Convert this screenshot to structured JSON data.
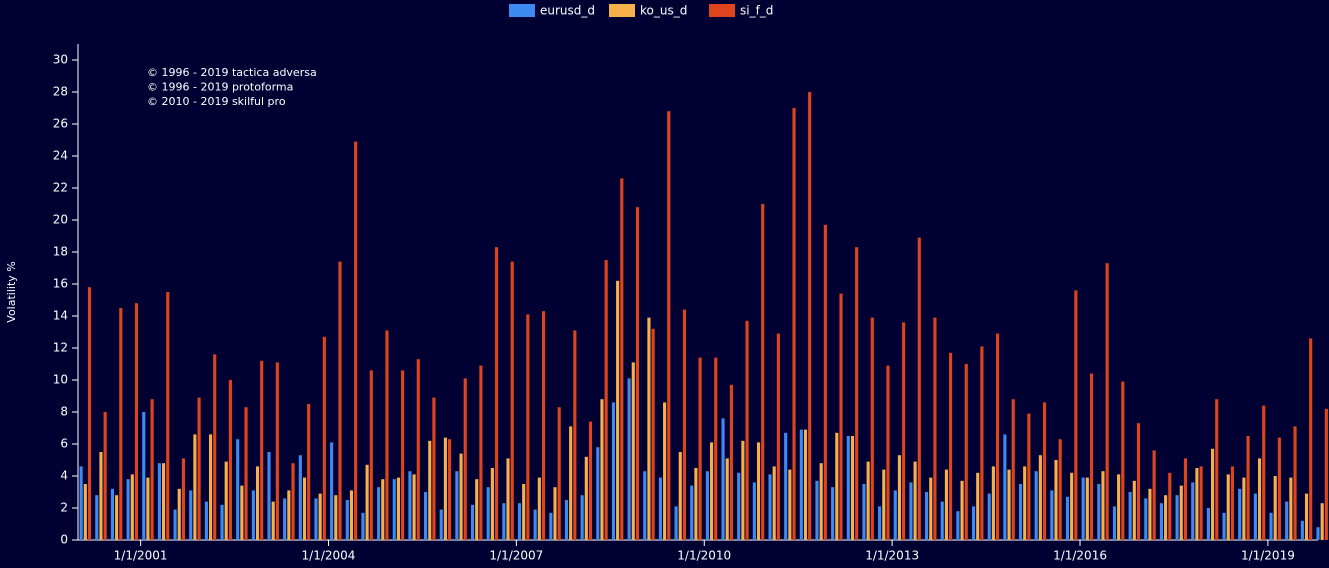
{
  "chart_data": {
    "type": "bar",
    "y_label": "Volatility %",
    "annotations": [
      "© 1996 - 2019 tactica adversa",
      "© 1996 - 2019 protoforma",
      "© 2010 - 2019 skilful pro"
    ],
    "legend": "top",
    "xlim": [
      2000,
      2019.8
    ],
    "xticks": [
      {
        "value": 2001,
        "label": "1/1/2001"
      },
      {
        "value": 2004,
        "label": "1/1/2004"
      },
      {
        "value": 2007,
        "label": "1/1/2007"
      },
      {
        "value": 2010,
        "label": "1/1/2010"
      },
      {
        "value": 2013,
        "label": "1/1/2013"
      },
      {
        "value": 2016,
        "label": "1/1/2016"
      },
      {
        "value": 2019,
        "label": "1/1/2019"
      }
    ],
    "ylim": [
      0,
      31
    ],
    "yticks": [
      0,
      2,
      4,
      6,
      8,
      10,
      12,
      14,
      16,
      18,
      20,
      22,
      24,
      26,
      28,
      30
    ],
    "x": [
      2000,
      2000.25,
      2000.5,
      2000.75,
      2001,
      2001.25,
      2001.5,
      2001.75,
      2002,
      2002.25,
      2002.5,
      2002.75,
      2003,
      2003.25,
      2003.5,
      2003.75,
      2004,
      2004.25,
      2004.5,
      2004.75,
      2005,
      2005.25,
      2005.5,
      2005.75,
      2006,
      2006.25,
      2006.5,
      2006.75,
      2007,
      2007.25,
      2007.5,
      2007.75,
      2008,
      2008.25,
      2008.5,
      2008.75,
      2009,
      2009.25,
      2009.5,
      2009.75,
      2010,
      2010.25,
      2010.5,
      2010.75,
      2011,
      2011.25,
      2011.5,
      2011.75,
      2012,
      2012.25,
      2012.5,
      2012.75,
      2013,
      2013.25,
      2013.5,
      2013.75,
      2014,
      2014.25,
      2014.5,
      2014.75,
      2015,
      2015.25,
      2015.5,
      2015.75,
      2016,
      2016.25,
      2016.5,
      2016.75,
      2017,
      2017.25,
      2017.5,
      2017.75,
      2018,
      2018.25,
      2018.5,
      2018.75,
      2019,
      2019.25,
      2019.5,
      2019.75
    ],
    "series": [
      {
        "name": "eurusd_d",
        "color": "#3d8bf0",
        "values": [
          4.6,
          2.8,
          3.2,
          3.8,
          8,
          4.8,
          1.9,
          3.1,
          2.4,
          2.2,
          6.3,
          3.1,
          5.5,
          2.6,
          5.3,
          2.6,
          6.1,
          2.5,
          1.7,
          3.3,
          3.8,
          4.3,
          3.0,
          1.9,
          4.3,
          2.2,
          3.3,
          2.3,
          2.3,
          1.9,
          1.7,
          2.5,
          2.8,
          5.8,
          8.6,
          10.1,
          4.3,
          3.9,
          2.1,
          3.4,
          4.3,
          7.6,
          4.2,
          3.6,
          4.1,
          6.7,
          6.9,
          3.7,
          3.3,
          6.5,
          3.5,
          2.1,
          3.1,
          3.6,
          3.0,
          2.4,
          1.8,
          2.1,
          2.9,
          6.6,
          3.5,
          4.3,
          3.1,
          2.7,
          3.9,
          3.5,
          2.1,
          3.0,
          2.6,
          2.3,
          2.8,
          3.6,
          2.0,
          1.7,
          3.2,
          2.9,
          1.7,
          2.4,
          1.2,
          0.8
        ]
      },
      {
        "name": "ko_us_d",
        "color": "#f7b14a",
        "values": [
          3.5,
          5.5,
          2.8,
          4.1,
          3.9,
          4.8,
          3.2,
          6.6,
          6.6,
          4.9,
          3.4,
          4.6,
          2.4,
          3.1,
          3.9,
          2.9,
          2.8,
          3.1,
          4.7,
          3.8,
          3.9,
          4.1,
          6.2,
          6.4,
          5.4,
          3.8,
          4.5,
          5.1,
          3.5,
          3.9,
          3.3,
          7.1,
          5.2,
          8.8,
          16.2,
          11.1,
          13.9,
          8.6,
          5.5,
          4.5,
          6.1,
          5.1,
          6.2,
          6.1,
          4.6,
          4.4,
          6.9,
          4.8,
          6.7,
          6.5,
          4.9,
          4.4,
          5.3,
          4.9,
          3.9,
          4.4,
          3.7,
          4.2,
          4.6,
          4.4,
          4.6,
          5.3,
          5.0,
          4.2,
          3.9,
          4.3,
          4.1,
          3.7,
          3.2,
          2.8,
          3.4,
          4.5,
          5.7,
          4.1,
          3.9,
          5.1,
          4.0,
          3.9,
          2.9,
          2.3
        ]
      },
      {
        "name": "si_f_d",
        "color": "#e0441c",
        "values": [
          15.8,
          8,
          14.5,
          14.8,
          8.8,
          15.5,
          5.1,
          8.9,
          11.6,
          10,
          8.3,
          11.2,
          11.1,
          4.8,
          8.5,
          12.7,
          17.4,
          24.9,
          10.6,
          13.1,
          10.6,
          11.3,
          8.9,
          6.3,
          10.1,
          10.9,
          18.3,
          17.4,
          14.1,
          14.3,
          8.3,
          13.1,
          7.4,
          17.5,
          22.6,
          20.8,
          13.2,
          26.8,
          14.4,
          11.4,
          11.4,
          9.7,
          13.7,
          21,
          12.9,
          27,
          28,
          19.7,
          15.4,
          18.3,
          13.9,
          10.9,
          13.6,
          18.9,
          13.9,
          11.7,
          11,
          12.1,
          12.9,
          8.8,
          7.9,
          8.6,
          6.3,
          15.6,
          10.4,
          17.3,
          9.9,
          7.3,
          5.6,
          4.2,
          5.1,
          4.6,
          8.8,
          4.6,
          6.5,
          8.4,
          6.4,
          7.1,
          12.6,
          8.2
        ]
      }
    ]
  }
}
